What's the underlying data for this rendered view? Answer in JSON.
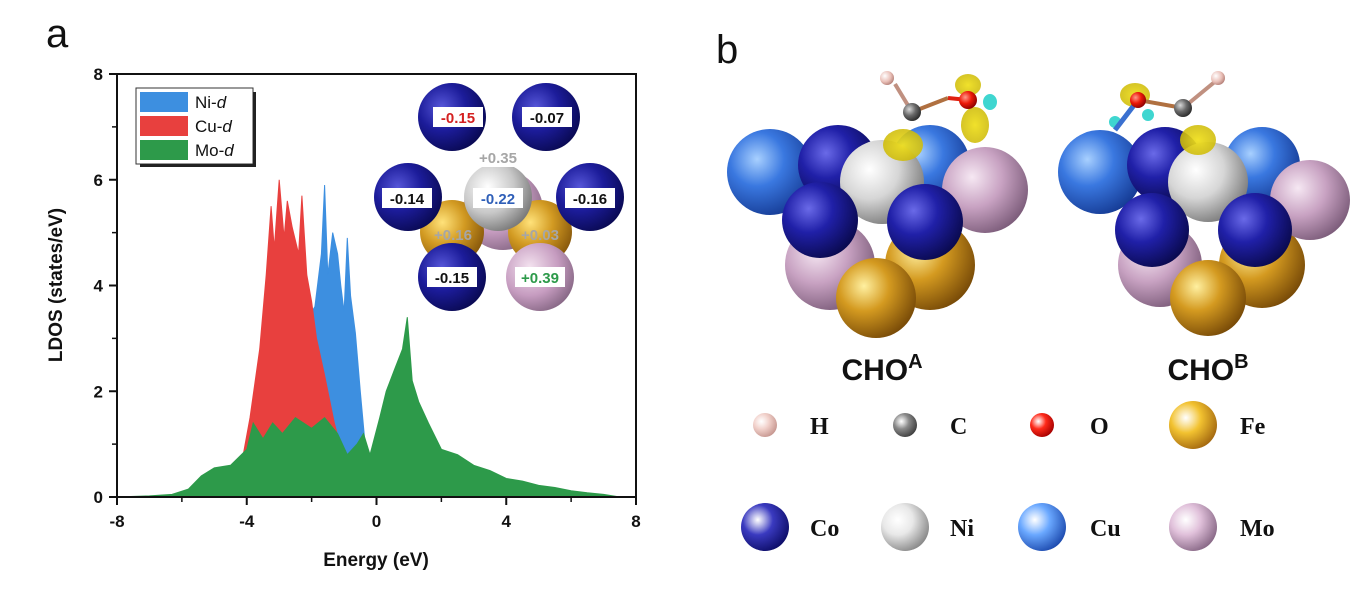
{
  "panels": {
    "a": "a",
    "b": "b"
  },
  "chart_data": {
    "type": "area",
    "xlabel": "Energy (eV)",
    "ylabel": "LDOS (states/eV)",
    "xlim": [
      -8,
      8
    ],
    "ylim": [
      0,
      8
    ],
    "xticks": [
      "-8",
      "-4",
      "0",
      "4",
      "8"
    ],
    "yticks": [
      "0",
      "2",
      "4",
      "6",
      "8"
    ],
    "legend_position": "top-left",
    "series": [
      {
        "name": "Ni-d",
        "base": "Ni-",
        "sub": "d",
        "color": "#3d8fe0",
        "points": [
          [
            -4.6,
            0.0
          ],
          [
            -4.2,
            0.3
          ],
          [
            -3.8,
            0.9
          ],
          [
            -3.4,
            1.6
          ],
          [
            -3.0,
            2.4
          ],
          [
            -2.6,
            3.0
          ],
          [
            -2.2,
            3.3
          ],
          [
            -1.9,
            3.6
          ],
          [
            -1.7,
            4.6
          ],
          [
            -1.6,
            5.9
          ],
          [
            -1.5,
            4.2
          ],
          [
            -1.35,
            5.0
          ],
          [
            -1.2,
            4.6
          ],
          [
            -1.1,
            4.0
          ],
          [
            -1.0,
            3.5
          ],
          [
            -0.9,
            4.9
          ],
          [
            -0.8,
            3.8
          ],
          [
            -0.65,
            3.1
          ],
          [
            -0.5,
            2.0
          ],
          [
            -0.35,
            1.0
          ],
          [
            -0.2,
            0.6
          ],
          [
            0.0,
            0.4
          ],
          [
            0.4,
            0.2
          ],
          [
            1.0,
            0.0
          ]
        ]
      },
      {
        "name": "Cu-d",
        "base": "Cu-",
        "sub": "d",
        "color": "#e8403e",
        "points": [
          [
            -4.8,
            0.0
          ],
          [
            -4.2,
            0.5
          ],
          [
            -3.9,
            1.5
          ],
          [
            -3.6,
            2.8
          ],
          [
            -3.4,
            4.2
          ],
          [
            -3.25,
            5.5
          ],
          [
            -3.15,
            4.7
          ],
          [
            -3.0,
            6.0
          ],
          [
            -2.85,
            4.9
          ],
          [
            -2.75,
            5.6
          ],
          [
            -2.6,
            5.1
          ],
          [
            -2.4,
            4.6
          ],
          [
            -2.3,
            5.7
          ],
          [
            -2.15,
            4.2
          ],
          [
            -2.0,
            3.7
          ],
          [
            -1.85,
            3.0
          ],
          [
            -1.6,
            2.3
          ],
          [
            -1.3,
            1.4
          ],
          [
            -1.0,
            0.7
          ],
          [
            -0.7,
            0.3
          ],
          [
            0.0,
            0.0
          ]
        ]
      },
      {
        "name": "Mo-d",
        "base": "Mo-",
        "sub": "d",
        "color": "#2d9a4a",
        "points": [
          [
            -8.0,
            0.0
          ],
          [
            -7.0,
            0.02
          ],
          [
            -6.3,
            0.05
          ],
          [
            -5.8,
            0.15
          ],
          [
            -5.4,
            0.4
          ],
          [
            -5.0,
            0.55
          ],
          [
            -4.5,
            0.6
          ],
          [
            -4.0,
            0.9
          ],
          [
            -3.8,
            1.4
          ],
          [
            -3.5,
            1.1
          ],
          [
            -3.2,
            1.4
          ],
          [
            -2.9,
            1.2
          ],
          [
            -2.5,
            1.5
          ],
          [
            -2.0,
            1.3
          ],
          [
            -1.6,
            1.5
          ],
          [
            -1.2,
            1.2
          ],
          [
            -0.9,
            0.8
          ],
          [
            -0.6,
            1.0
          ],
          [
            -0.4,
            1.2
          ],
          [
            -0.2,
            0.8
          ],
          [
            0.1,
            1.5
          ],
          [
            0.3,
            2.0
          ],
          [
            0.55,
            2.4
          ],
          [
            0.8,
            2.8
          ],
          [
            0.95,
            3.4
          ],
          [
            1.1,
            2.2
          ],
          [
            1.3,
            1.8
          ],
          [
            1.6,
            1.4
          ],
          [
            2.0,
            0.9
          ],
          [
            2.5,
            0.8
          ],
          [
            3.0,
            0.6
          ],
          [
            3.5,
            0.5
          ],
          [
            4.0,
            0.35
          ],
          [
            4.5,
            0.3
          ],
          [
            5.0,
            0.22
          ],
          [
            5.5,
            0.18
          ],
          [
            6.0,
            0.12
          ],
          [
            6.5,
            0.08
          ],
          [
            7.0,
            0.05
          ],
          [
            7.5,
            0.0
          ],
          [
            8.0,
            0.0
          ]
        ]
      }
    ],
    "charge_inset": [
      {
        "value": "-0.15",
        "color": "#d42020",
        "bg": "#ffffff"
      },
      {
        "value": "-0.07",
        "color": "#111111",
        "bg": "#ffffff"
      },
      {
        "value": "+0.35",
        "color": "#a6a6a6",
        "bg": "#ffffff"
      },
      {
        "value": "-0.14",
        "color": "#111111",
        "bg": "#ffffff"
      },
      {
        "value": "-0.22",
        "color": "#2f5fb8",
        "bg": "#ffffff"
      },
      {
        "value": "-0.16",
        "color": "#111111",
        "bg": "#ffffff"
      },
      {
        "value": "+0.16",
        "color": "#a6a6a6",
        "bg": "transparent"
      },
      {
        "value": "+0.03",
        "color": "#a6a6a6",
        "bg": "transparent"
      },
      {
        "value": "-0.15",
        "color": "#111111",
        "bg": "#ffffff"
      },
      {
        "value": "+0.39",
        "color": "#2d9a4a",
        "bg": "#ffffff"
      }
    ]
  },
  "structures": [
    {
      "main": "CHO",
      "sup": "A"
    },
    {
      "main": "CHO",
      "sup": "B"
    }
  ],
  "element_legend": [
    {
      "symbol": "H",
      "color": "#f2d2cc",
      "dark": "#c69790"
    },
    {
      "symbol": "C",
      "color": "#8a8a8a",
      "dark": "#3e3e3e"
    },
    {
      "symbol": "O",
      "color": "#ff2a1a",
      "dark": "#a50000"
    },
    {
      "symbol": "Fe",
      "color": "#f2c230",
      "dark": "#a56a10"
    },
    {
      "symbol": "Co",
      "color": "#3a3ac0",
      "dark": "#0e0e6a"
    },
    {
      "symbol": "Ni",
      "color": "#e8e8e8",
      "dark": "#8a8a8a"
    },
    {
      "symbol": "Cu",
      "color": "#6aa8ff",
      "dark": "#1e4cb0"
    },
    {
      "symbol": "Mo",
      "color": "#e0c0da",
      "dark": "#8a6a88"
    }
  ]
}
